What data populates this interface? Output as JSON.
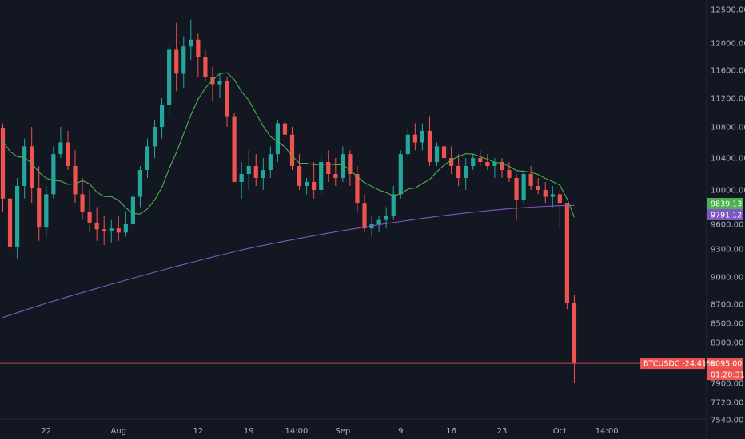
{
  "chart_data": {
    "type": "candlestick",
    "symbol": "BTCUSDC",
    "change": "-24.41%",
    "last_price": "8095.00",
    "countdown": "01:20:31",
    "ma_fast_label": "9839.13",
    "ma_slow_label": "9791.12",
    "y_ticks": [
      "12500.00",
      "12000.00",
      "11600.00",
      "11200.00",
      "10800.00",
      "10400.00",
      "10000.00",
      "9600.00",
      "9300.00",
      "9000.00",
      "8700.00",
      "8500.00",
      "8300.00",
      "7900.00",
      "7720.00",
      "7540.00"
    ],
    "x_ticks": [
      {
        "label": "22",
        "i": 6
      },
      {
        "label": "Aug",
        "i": 16
      },
      {
        "label": "12",
        "i": 27
      },
      {
        "label": "19",
        "i": 34
      },
      {
        "label": "14:00",
        "i": 40.6
      },
      {
        "label": "Sep",
        "i": 47
      },
      {
        "label": "9",
        "i": 55
      },
      {
        "label": "16",
        "i": 62
      },
      {
        "label": "23",
        "i": 69
      },
      {
        "label": "Oct",
        "i": 77
      },
      {
        "label": "14:00",
        "i": 83.5
      }
    ],
    "colors": {
      "up": "#26a69a",
      "down": "#ef5350",
      "ma_fast": "#4caf50",
      "ma_slow": "#7e57c2",
      "price_line": "#ef5350",
      "background": "#131722"
    },
    "candles": [
      [
        10790,
        10850,
        9750,
        9900
      ],
      [
        9900,
        10100,
        9150,
        9330
      ],
      [
        9330,
        10150,
        9200,
        10050
      ],
      [
        10050,
        10650,
        9900,
        10550
      ],
      [
        10550,
        10800,
        9850,
        10020
      ],
      [
        10020,
        10300,
        9400,
        9560
      ],
      [
        9560,
        10050,
        9450,
        9950
      ],
      [
        9950,
        10550,
        9900,
        10450
      ],
      [
        10450,
        10800,
        10400,
        10600
      ],
      [
        10600,
        10750,
        10250,
        10300
      ],
      [
        10300,
        10500,
        9850,
        9950
      ],
      [
        9950,
        10150,
        9650,
        9750
      ],
      [
        9750,
        10000,
        9500,
        9620
      ],
      [
        9620,
        9800,
        9400,
        9540
      ],
      [
        9540,
        9700,
        9350,
        9520
      ],
      [
        9520,
        9650,
        9380,
        9550
      ],
      [
        9550,
        9700,
        9400,
        9500
      ],
      [
        9500,
        9750,
        9450,
        9600
      ],
      [
        9600,
        9950,
        9550,
        9920
      ],
      [
        9920,
        10300,
        9800,
        10250
      ],
      [
        10250,
        10650,
        10150,
        10550
      ],
      [
        10550,
        10900,
        10400,
        10800
      ],
      [
        10800,
        11200,
        10650,
        11100
      ],
      [
        11100,
        12000,
        10950,
        11900
      ],
      [
        11900,
        12300,
        11300,
        11550
      ],
      [
        11550,
        12100,
        11350,
        11950
      ],
      [
        11950,
        12350,
        11750,
        12050
      ],
      [
        12050,
        12150,
        11500,
        11800
      ],
      [
        11800,
        11900,
        11450,
        11500
      ],
      [
        11500,
        11650,
        11150,
        11400
      ],
      [
        11400,
        11550,
        11200,
        11450
      ],
      [
        11450,
        11500,
        10800,
        10950
      ],
      [
        10950,
        11000,
        10100,
        10100
      ],
      [
        10100,
        10350,
        9900,
        10200
      ],
      [
        10200,
        10500,
        10000,
        10300
      ],
      [
        10300,
        10450,
        10050,
        10150
      ],
      [
        10150,
        10400,
        10000,
        10250
      ],
      [
        10250,
        10550,
        10150,
        10450
      ],
      [
        10450,
        10900,
        10350,
        10850
      ],
      [
        10850,
        10950,
        10650,
        10700
      ],
      [
        10700,
        10800,
        10250,
        10300
      ],
      [
        10300,
        10450,
        10000,
        10050
      ],
      [
        10050,
        10150,
        9950,
        10100
      ],
      [
        10100,
        10350,
        9900,
        10000
      ],
      [
        10000,
        10450,
        9950,
        10350
      ],
      [
        10350,
        10500,
        10100,
        10200
      ],
      [
        10200,
        10400,
        10050,
        10150
      ],
      [
        10150,
        10550,
        10100,
        10450
      ],
      [
        10450,
        10500,
        10050,
        10200
      ],
      [
        10200,
        10300,
        9750,
        9850
      ],
      [
        9850,
        9950,
        9500,
        9550
      ],
      [
        9550,
        9700,
        9450,
        9600
      ],
      [
        9600,
        9700,
        9500,
        9650
      ],
      [
        9650,
        9800,
        9550,
        9700
      ],
      [
        9700,
        10050,
        9650,
        9950
      ],
      [
        9950,
        10500,
        9900,
        10450
      ],
      [
        10450,
        10800,
        10400,
        10700
      ],
      [
        10700,
        10850,
        10500,
        10600
      ],
      [
        10600,
        10850,
        10500,
        10750
      ],
      [
        10750,
        10950,
        10300,
        10350
      ],
      [
        10350,
        10600,
        10300,
        10550
      ],
      [
        10550,
        10650,
        10300,
        10400
      ],
      [
        10400,
        10550,
        10200,
        10300
      ],
      [
        10300,
        10450,
        10050,
        10150
      ],
      [
        10150,
        10400,
        10000,
        10300
      ],
      [
        10300,
        10450,
        10250,
        10400
      ],
      [
        10400,
        10500,
        10300,
        10350
      ],
      [
        10350,
        10450,
        10250,
        10300
      ],
      [
        10300,
        10400,
        10150,
        10350
      ],
      [
        10350,
        10400,
        10150,
        10250
      ],
      [
        10250,
        10350,
        10100,
        10150
      ],
      [
        10150,
        10200,
        9650,
        9880
      ],
      [
        9880,
        10250,
        9850,
        10200
      ],
      [
        10200,
        10300,
        10000,
        10050
      ],
      [
        10050,
        10150,
        9950,
        10000
      ],
      [
        10000,
        10100,
        9850,
        9920
      ],
      [
        9920,
        10050,
        9800,
        9950
      ],
      [
        9950,
        10000,
        9550,
        9850
      ],
      [
        9850,
        9850,
        8650,
        8710
      ],
      [
        8710,
        8800,
        7900,
        8100
      ]
    ]
  }
}
